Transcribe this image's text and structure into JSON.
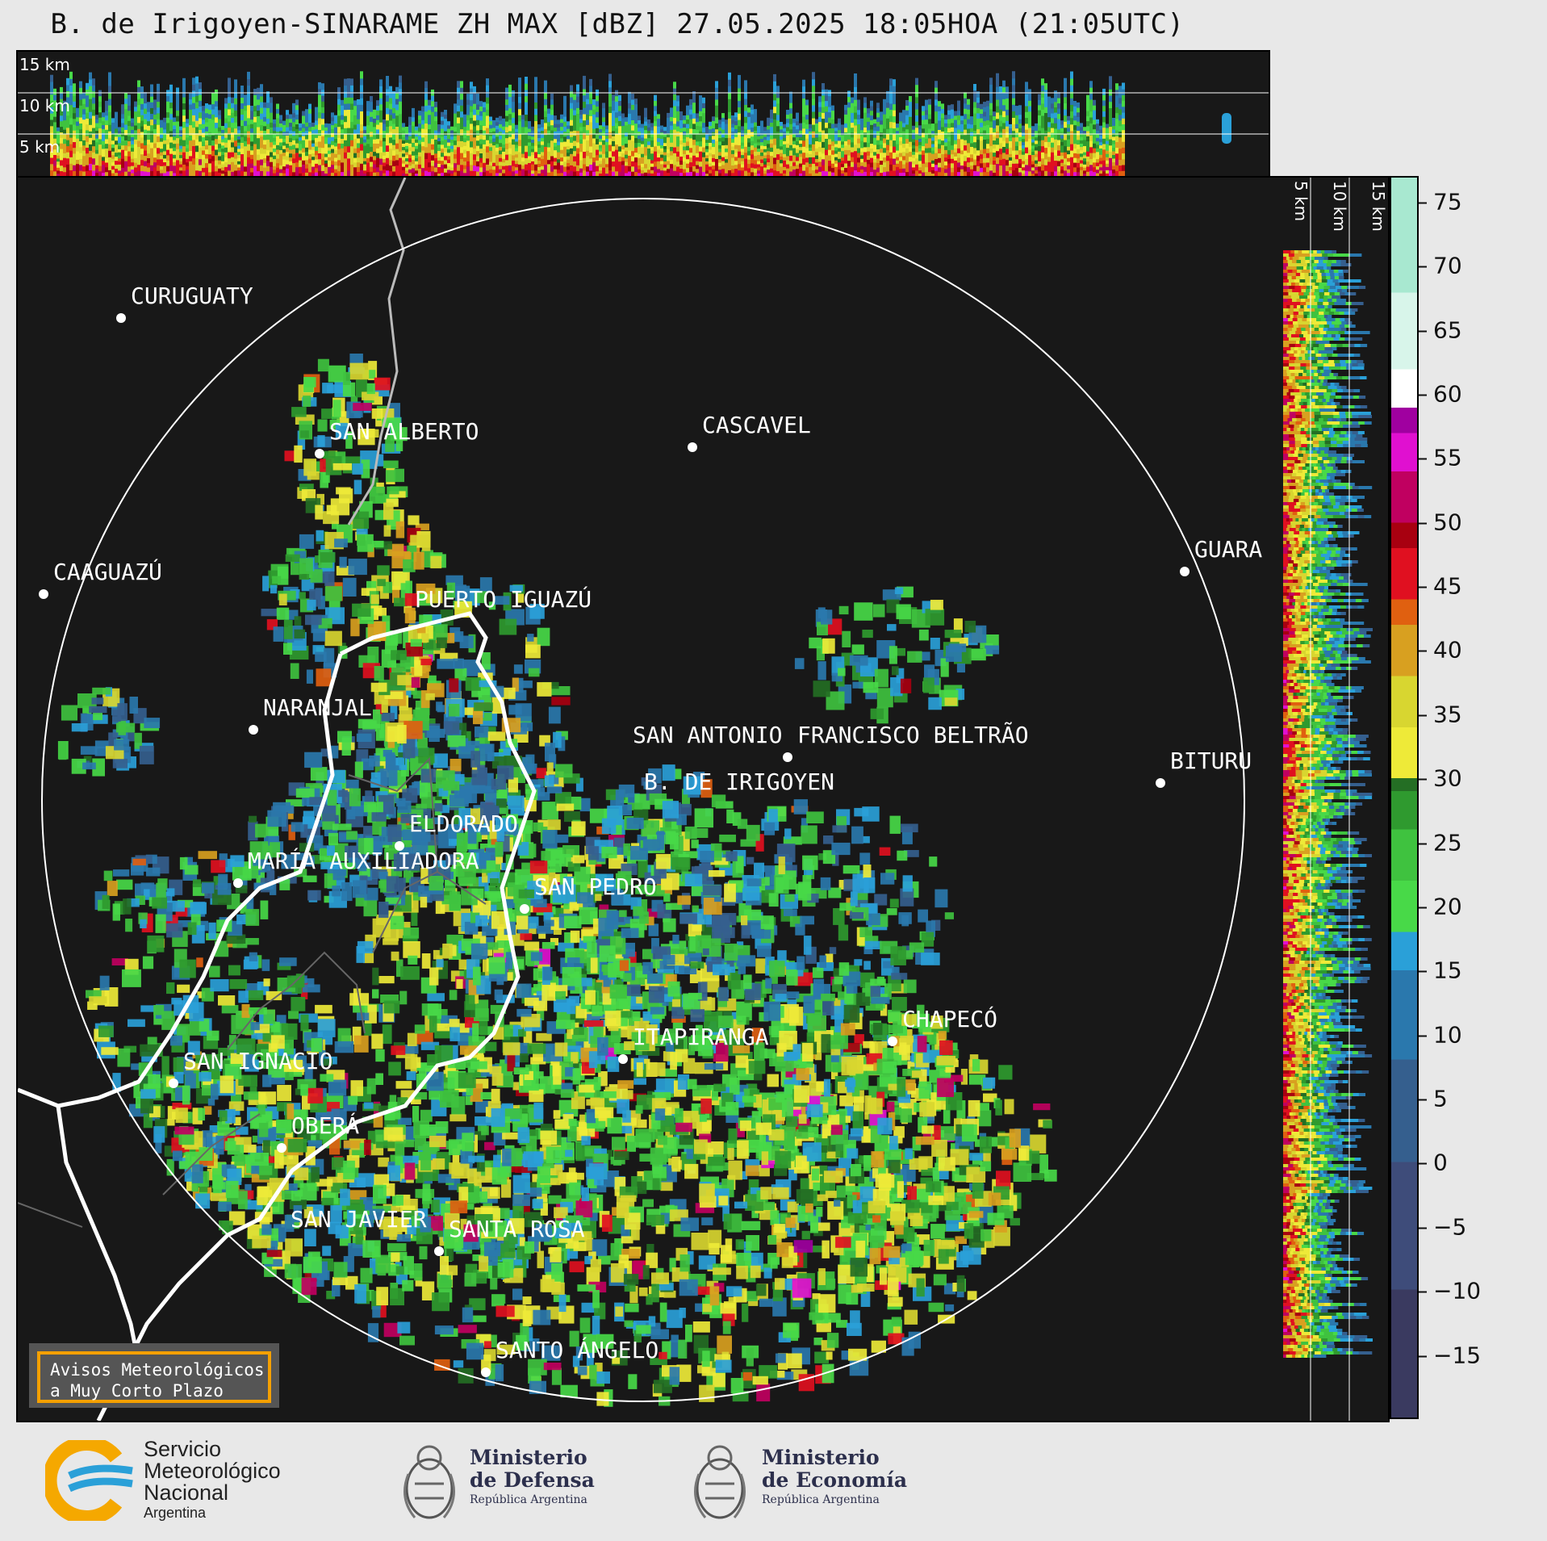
{
  "title": "B. de Irigoyen-SINARAME ZH MAX [dBZ] 27.05.2025 18:05HOA (21:05UTC)",
  "top_panel": {
    "altitude_labels": [
      "15 km",
      "10 km",
      "5 km"
    ]
  },
  "side_panel": {
    "altitude_labels": [
      "5 km",
      "10 km",
      "15 km"
    ]
  },
  "cities": [
    {
      "name": "CURUGUATY"
    },
    {
      "name": "SAN ALBERTO"
    },
    {
      "name": "CASCAVEL"
    },
    {
      "name": "CAAGUAZÚ"
    },
    {
      "name": "GUARA"
    },
    {
      "name": "PUERTO IGUAZÚ"
    },
    {
      "name": "NARANJAL"
    },
    {
      "name": "SAN ANTONIO"
    },
    {
      "name": "FRANCISCO BELTRÃO"
    },
    {
      "name": "BITURU"
    },
    {
      "name": "B. DE IRIGOYEN"
    },
    {
      "name": "ELDORADO"
    },
    {
      "name": "MARÍA AUXILIADORA"
    },
    {
      "name": "SAN PEDRO"
    },
    {
      "name": "CHAPECÓ"
    },
    {
      "name": "ITAPIRANGA"
    },
    {
      "name": "SAN IGNACIO"
    },
    {
      "name": "OBERÁ"
    },
    {
      "name": "SAN JAVIER"
    },
    {
      "name": "SANTA ROSA"
    },
    {
      "name": "SANTO ÁNGELO"
    }
  ],
  "colorbar": {
    "unit": "dBZ",
    "range": [
      -20,
      77
    ],
    "ticks": [
      "75",
      "70",
      "65",
      "60",
      "55",
      "50",
      "45",
      "40",
      "35",
      "30",
      "25",
      "20",
      "15",
      "10",
      "5",
      "0",
      "−5",
      "−10",
      "−15"
    ]
  },
  "avisos": {
    "line1": "Avisos Meteorológicos",
    "line2": "a Muy Corto Plazo"
  },
  "footer": {
    "smn": {
      "line1": "Servicio",
      "line2": "Meteorológico",
      "line3": "Nacional",
      "line4": "Argentina"
    },
    "defensa": {
      "line1": "Ministerio",
      "line2": "de Defensa",
      "line3": "República Argentina"
    },
    "economia": {
      "line1": "Ministerio",
      "line2": "de Economía",
      "line3": "República Argentina"
    }
  },
  "colors": {
    "background": "#181818",
    "range_ring": "#ffffff",
    "province_border": "#ffffff",
    "country_border": "#bbbbbb",
    "avisos_border": "#f5a000"
  }
}
